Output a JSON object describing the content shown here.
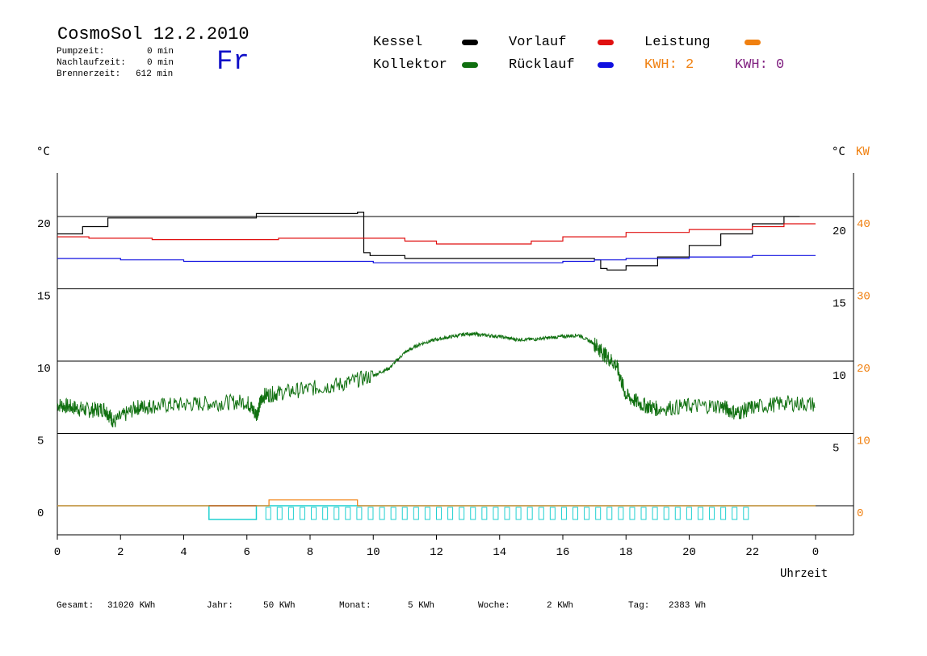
{
  "header": {
    "title": "CosmoSol 12.2.2010",
    "weekday": "Fr",
    "pump_label": "Pumpzeit:",
    "pump_value": "0 min",
    "nachlauf_label": "Nachlaufzeit:",
    "nachlauf_value": "0 min",
    "brenner_label": "Brennerzeit:",
    "brenner_value": "612 min"
  },
  "legend": {
    "kessel": "Kessel",
    "kollektor": "Kollektor",
    "vorlauf": "Vorlauf",
    "ruecklauf": "Rücklauf",
    "leistung": "Leistung",
    "kwh1": "KWH: 2",
    "kwh2": "KWH: 0"
  },
  "colors": {
    "kessel": "#000000",
    "vorlauf": "#e01010",
    "ruecklauf": "#1010e0",
    "kollektor": "#107010",
    "leistung": "#f08010",
    "kwh2": "#802080",
    "pump": "#20d0d0",
    "burner": "#902050",
    "weekday": "#1010c8"
  },
  "axes": {
    "left_unit": "°C",
    "right_unit": "°C",
    "right_unit2": "KW",
    "xlabel": "Uhrzeit"
  },
  "footer": {
    "gesamt_label": "Gesamt:",
    "gesamt_value": "31020 KWh",
    "jahr_label": "Jahr:",
    "jahr_value": "50 KWh",
    "monat_label": "Monat:",
    "monat_value": "5 KWh",
    "woche_label": "Woche:",
    "woche_value": "2 KWh",
    "tag_label": "Tag:",
    "tag_value": "2383 Wh"
  },
  "chart_data": {
    "type": "line",
    "x_ticks": [
      "0",
      "2",
      "4",
      "6",
      "8",
      "10",
      "12",
      "14",
      "16",
      "18",
      "20",
      "22",
      "0"
    ],
    "y_left_ticks": [
      "0",
      "5",
      "10",
      "15",
      "20"
    ],
    "y_right_ticks": [
      "5",
      "10",
      "15",
      "20"
    ],
    "y_right2_ticks": [
      "0",
      "10",
      "20",
      "30",
      "40"
    ],
    "xlim": [
      0,
      24
    ],
    "series": [
      {
        "name": "Kessel",
        "color": "#000000",
        "x": [
          0,
          0.8,
          1.6,
          1.8,
          4.8,
          6.3,
          9.5,
          9.7,
          9.9,
          11.0,
          15.0,
          17.0,
          17.2,
          17.4,
          18.0,
          19.0,
          20.0,
          21.0,
          22.0,
          23.0,
          23.5
        ],
        "y": [
          18.8,
          19.3,
          19.9,
          19.9,
          19.9,
          20.2,
          20.3,
          17.5,
          17.3,
          17.1,
          17.1,
          17.0,
          16.4,
          16.3,
          16.6,
          17.2,
          18.0,
          18.8,
          19.5,
          20.0,
          20.0
        ]
      },
      {
        "name": "Vorlauf",
        "color": "#e01010",
        "x": [
          0,
          1,
          3,
          5,
          7,
          9,
          10,
          11,
          12,
          14,
          15,
          16,
          18,
          20,
          22,
          23,
          24
        ],
        "y": [
          18.6,
          18.5,
          18.4,
          18.4,
          18.5,
          18.5,
          18.5,
          18.3,
          18.1,
          18.1,
          18.3,
          18.6,
          18.9,
          19.1,
          19.3,
          19.5,
          19.5
        ]
      },
      {
        "name": "Rücklauf",
        "color": "#1010e0",
        "x": [
          0,
          2,
          4,
          6,
          8,
          10,
          12,
          14,
          16,
          17,
          18,
          20,
          22,
          24
        ],
        "y": [
          17.1,
          17.0,
          16.9,
          16.9,
          16.9,
          16.8,
          16.8,
          16.8,
          16.9,
          17.0,
          17.1,
          17.2,
          17.3,
          17.3
        ]
      },
      {
        "name": "Kollektor",
        "color": "#107010",
        "x": [
          0,
          0.5,
          1,
          1.5,
          1.8,
          2.5,
          3,
          4,
          5,
          6,
          6.3,
          6.5,
          7,
          8,
          9,
          10,
          10.5,
          11,
          11.5,
          12,
          12.5,
          13,
          13.5,
          14,
          14.5,
          15,
          15.5,
          16,
          16.5,
          17,
          17.3,
          17.7,
          18,
          18.5,
          19,
          20,
          21,
          21.5,
          22,
          23,
          24
        ],
        "y": [
          7.0,
          6.8,
          6.6,
          6.7,
          5.8,
          6.8,
          6.9,
          7.0,
          7.1,
          7.2,
          6.3,
          7.6,
          7.8,
          8.1,
          8.4,
          9.0,
          9.5,
          10.6,
          11.2,
          11.5,
          11.7,
          11.9,
          11.8,
          11.7,
          11.5,
          11.5,
          11.6,
          11.7,
          11.8,
          11.2,
          10.5,
          9.7,
          7.6,
          7.0,
          6.7,
          6.9,
          6.9,
          6.4,
          6.8,
          7.1,
          7.0
        ]
      },
      {
        "name": "Leistung",
        "color": "#f08010",
        "x": [
          0,
          6.7,
          6.7,
          9.5,
          9.5,
          24
        ],
        "y": [
          0,
          0,
          0.4,
          0.4,
          0,
          0
        ]
      }
    ],
    "pump_state": {
      "color": "#20d0d0",
      "x_start": 4.8,
      "x_end": 21.9
    }
  }
}
